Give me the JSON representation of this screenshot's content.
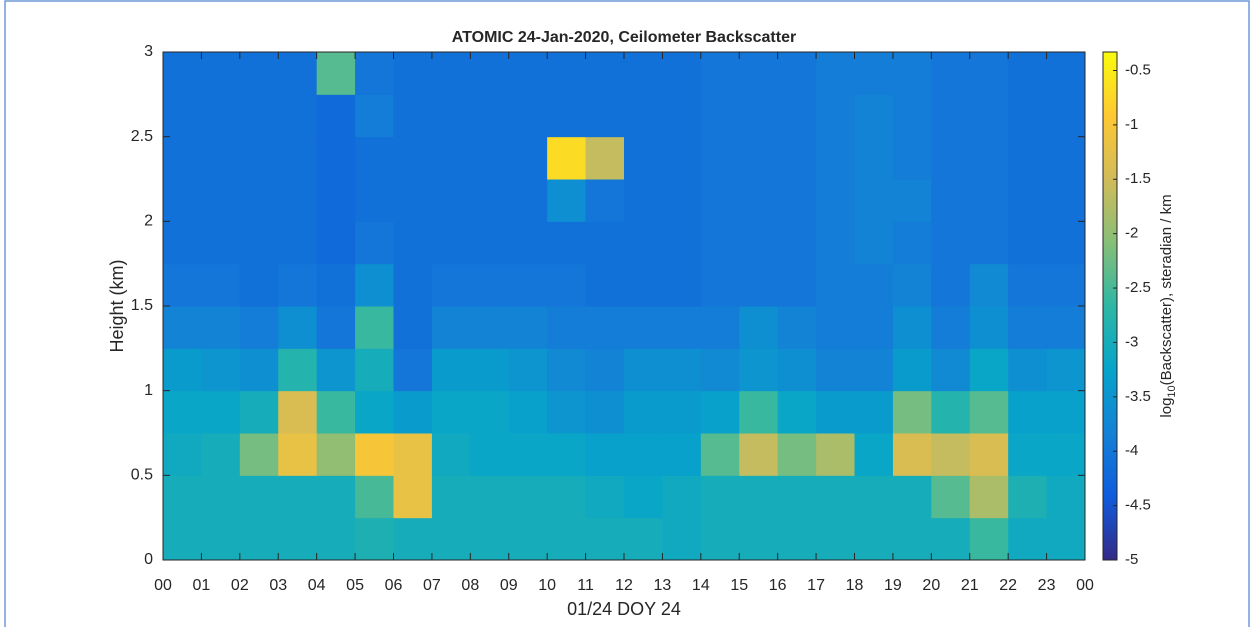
{
  "chart_data": {
    "type": "heatmap",
    "title": "ATOMIC 24-Jan-2020, Ceilometer Backscatter",
    "xlabel": "01/24 DOY 24",
    "ylabel": "Height (km)",
    "colorbar_label": [
      "log",
      "10",
      "(Backscatter), steradian / km"
    ],
    "colormap": [
      "#352a87",
      "#0f5cdd",
      "#1481d6",
      "#06a4ca",
      "#2eb7a4",
      "#87bf77",
      "#d1bb59",
      "#fec832",
      "#f9fb0e"
    ],
    "xlim": [
      0,
      24
    ],
    "xticks": [
      {
        "value": 0,
        "label": "00"
      },
      {
        "value": 1,
        "label": "01"
      },
      {
        "value": 2,
        "label": "02"
      },
      {
        "value": 3,
        "label": "03"
      },
      {
        "value": 4,
        "label": "04"
      },
      {
        "value": 5,
        "label": "05"
      },
      {
        "value": 6,
        "label": "06"
      },
      {
        "value": 7,
        "label": "07"
      },
      {
        "value": 8,
        "label": "08"
      },
      {
        "value": 9,
        "label": "09"
      },
      {
        "value": 10,
        "label": "10"
      },
      {
        "value": 11,
        "label": "11"
      },
      {
        "value": 12,
        "label": "12"
      },
      {
        "value": 13,
        "label": "13"
      },
      {
        "value": 14,
        "label": "14"
      },
      {
        "value": 15,
        "label": "15"
      },
      {
        "value": 16,
        "label": "16"
      },
      {
        "value": 17,
        "label": "17"
      },
      {
        "value": 18,
        "label": "18"
      },
      {
        "value": 19,
        "label": "19"
      },
      {
        "value": 20,
        "label": "20"
      },
      {
        "value": 21,
        "label": "21"
      },
      {
        "value": 22,
        "label": "22"
      },
      {
        "value": 23,
        "label": "23"
      },
      {
        "value": 24,
        "label": "00"
      }
    ],
    "ylim": [
      0,
      3
    ],
    "yticks": [
      0,
      0.5,
      1,
      1.5,
      2,
      2.5,
      3
    ],
    "clim": [
      -5,
      -0.33
    ],
    "cticks": [
      -5,
      -4.5,
      -4,
      -3.5,
      -3,
      -2.5,
      -2,
      -1.5,
      -1,
      -0.5
    ],
    "x": [
      0.5,
      1.5,
      2.5,
      3.5,
      4.5,
      5.5,
      6.5,
      7.5,
      8.5,
      9.5,
      10.5,
      11.5,
      12.5,
      13.5,
      14.5,
      15.5,
      16.5,
      17.5,
      18.5,
      19.5,
      20.5,
      21.5,
      22.5,
      23.5
    ],
    "y": [
      0.125,
      0.375,
      0.625,
      0.875,
      1.125,
      1.375,
      1.625,
      1.875,
      2.125,
      2.375,
      2.625,
      2.875
    ],
    "z": [
      [
        -3.0,
        -3.0,
        -3.0,
        -3.0,
        -3.0,
        -2.9,
        -3.0,
        -3.0,
        -3.0,
        -3.0,
        -3.0,
        -3.0,
        -3.0,
        -3.1,
        -3.0,
        -3.0,
        -3.0,
        -3.0,
        -3.0,
        -3.0,
        -3.0,
        -2.6,
        -3.1,
        -3.1
      ],
      [
        -3.0,
        -3.0,
        -3.0,
        -3.0,
        -3.0,
        -2.5,
        -1.2,
        -3.0,
        -3.0,
        -3.0,
        -3.0,
        -3.1,
        -3.2,
        -3.1,
        -3.0,
        -3.0,
        -3.0,
        -3.0,
        -3.0,
        -3.0,
        -2.4,
        -1.8,
        -2.9,
        -3.1
      ],
      [
        -3.1,
        -3.0,
        -2.2,
        -1.2,
        -2.0,
        -1.0,
        -1.2,
        -3.1,
        -3.2,
        -3.2,
        -3.2,
        -3.3,
        -3.3,
        -3.3,
        -2.4,
        -1.6,
        -2.2,
        -1.8,
        -3.2,
        -1.4,
        -1.6,
        -1.4,
        -3.2,
        -3.2
      ],
      [
        -3.2,
        -3.2,
        -3.0,
        -1.4,
        -2.6,
        -3.2,
        -3.4,
        -3.2,
        -3.2,
        -3.3,
        -3.5,
        -3.6,
        -3.4,
        -3.4,
        -3.3,
        -2.6,
        -3.2,
        -3.4,
        -3.4,
        -2.2,
        -2.8,
        -2.4,
        -3.3,
        -3.3
      ],
      [
        -3.4,
        -3.5,
        -3.6,
        -2.8,
        -3.5,
        -3.0,
        -4.0,
        -3.4,
        -3.4,
        -3.5,
        -3.7,
        -3.8,
        -3.6,
        -3.6,
        -3.7,
        -3.5,
        -3.6,
        -3.8,
        -3.8,
        -3.4,
        -3.7,
        -3.2,
        -3.6,
        -3.5
      ],
      [
        -3.8,
        -3.8,
        -3.9,
        -3.6,
        -4.0,
        -2.6,
        -4.1,
        -3.8,
        -3.8,
        -3.8,
        -3.9,
        -3.9,
        -3.9,
        -3.9,
        -3.9,
        -3.6,
        -3.8,
        -3.9,
        -3.9,
        -3.6,
        -3.9,
        -3.6,
        -3.9,
        -3.9
      ],
      [
        -4.0,
        -4.0,
        -4.1,
        -4.0,
        -4.1,
        -3.6,
        -4.1,
        -4.0,
        -4.0,
        -4.0,
        -4.0,
        -4.1,
        -4.1,
        -4.1,
        -4.0,
        -4.0,
        -4.0,
        -3.9,
        -3.9,
        -3.8,
        -4.0,
        -3.7,
        -4.0,
        -4.0
      ],
      [
        -4.1,
        -4.1,
        -4.1,
        -4.1,
        -4.2,
        -4.0,
        -4.1,
        -4.1,
        -4.1,
        -4.1,
        -4.1,
        -4.1,
        -4.1,
        -4.1,
        -4.0,
        -4.0,
        -4.0,
        -3.9,
        -3.8,
        -3.9,
        -4.0,
        -4.0,
        -4.1,
        -4.1
      ],
      [
        -4.1,
        -4.1,
        -4.1,
        -4.1,
        -4.2,
        -4.1,
        -4.1,
        -4.1,
        -4.1,
        -4.1,
        -3.6,
        -4.0,
        -4.1,
        -4.1,
        -4.0,
        -4.0,
        -4.0,
        -3.9,
        -3.8,
        -3.8,
        -4.0,
        -4.0,
        -4.1,
        -4.1
      ],
      [
        -4.1,
        -4.1,
        -4.1,
        -4.1,
        -4.2,
        -4.1,
        -4.1,
        -4.1,
        -4.1,
        -4.1,
        -0.7,
        -1.6,
        -4.1,
        -4.1,
        -4.0,
        -4.0,
        -4.0,
        -3.9,
        -3.8,
        -3.9,
        -4.0,
        -4.0,
        -4.1,
        -4.1
      ],
      [
        -4.1,
        -4.1,
        -4.1,
        -4.1,
        -4.2,
        -3.9,
        -4.1,
        -4.1,
        -4.1,
        -4.1,
        -4.1,
        -4.1,
        -4.1,
        -4.1,
        -4.0,
        -4.0,
        -4.0,
        -3.9,
        -3.8,
        -3.9,
        -4.0,
        -4.0,
        -4.1,
        -4.1
      ],
      [
        -4.1,
        -4.1,
        -4.1,
        -4.1,
        -2.4,
        -4.0,
        -4.1,
        -4.1,
        -4.1,
        -4.1,
        -4.1,
        -4.1,
        -4.1,
        -4.1,
        -4.0,
        -4.0,
        -4.0,
        -3.9,
        -3.9,
        -3.9,
        -4.0,
        -4.0,
        -4.1,
        -4.1
      ]
    ]
  }
}
